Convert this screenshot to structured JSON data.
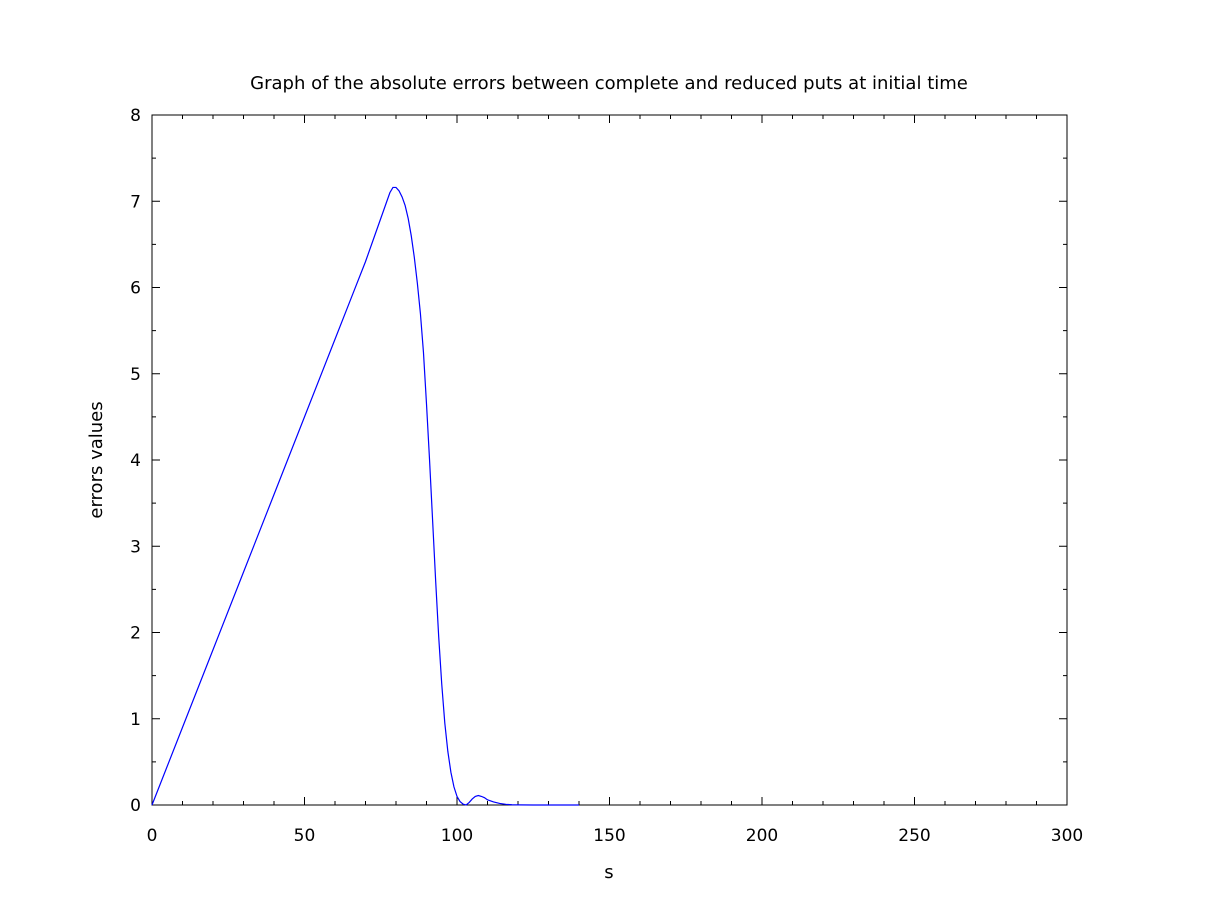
{
  "chart_data": {
    "type": "line",
    "title": "Graph of the absolute errors between complete and reduced puts at initial time",
    "xlabel": "s",
    "ylabel": "errors values",
    "xlim": [
      0,
      300
    ],
    "ylim": [
      0,
      8
    ],
    "x_ticks": [
      0,
      50,
      100,
      150,
      200,
      250,
      300
    ],
    "y_ticks": [
      0,
      1,
      2,
      3,
      4,
      5,
      6,
      7,
      8
    ],
    "x_minor_step": 10,
    "y_minor_step": 0.5,
    "grid": false,
    "line_color": "#0000ff",
    "series": [
      {
        "x": [
          0,
          10,
          20,
          30,
          40,
          50,
          60,
          65,
          70,
          73,
          75,
          77,
          78,
          79,
          80,
          81,
          82,
          83,
          84,
          85,
          86,
          87,
          88,
          89,
          90,
          91,
          92,
          93,
          94,
          95,
          96,
          97,
          98,
          99,
          100,
          101,
          102,
          103,
          104,
          105,
          106,
          107,
          108,
          109,
          110,
          112,
          114,
          116,
          118,
          120,
          125,
          130,
          135,
          140
        ],
        "y": [
          0,
          0.9,
          1.8,
          2.7,
          3.6,
          4.5,
          5.4,
          5.85,
          6.3,
          6.6,
          6.8,
          7.0,
          7.1,
          7.16,
          7.16,
          7.12,
          7.05,
          6.95,
          6.8,
          6.6,
          6.35,
          6.05,
          5.7,
          5.25,
          4.65,
          4.0,
          3.3,
          2.6,
          1.95,
          1.4,
          0.95,
          0.62,
          0.38,
          0.21,
          0.1,
          0.04,
          0.01,
          0.0,
          0.03,
          0.07,
          0.1,
          0.11,
          0.1,
          0.085,
          0.06,
          0.035,
          0.018,
          0.008,
          0.003,
          0.001,
          0.0,
          0.0,
          0.0,
          0.0
        ]
      }
    ]
  }
}
